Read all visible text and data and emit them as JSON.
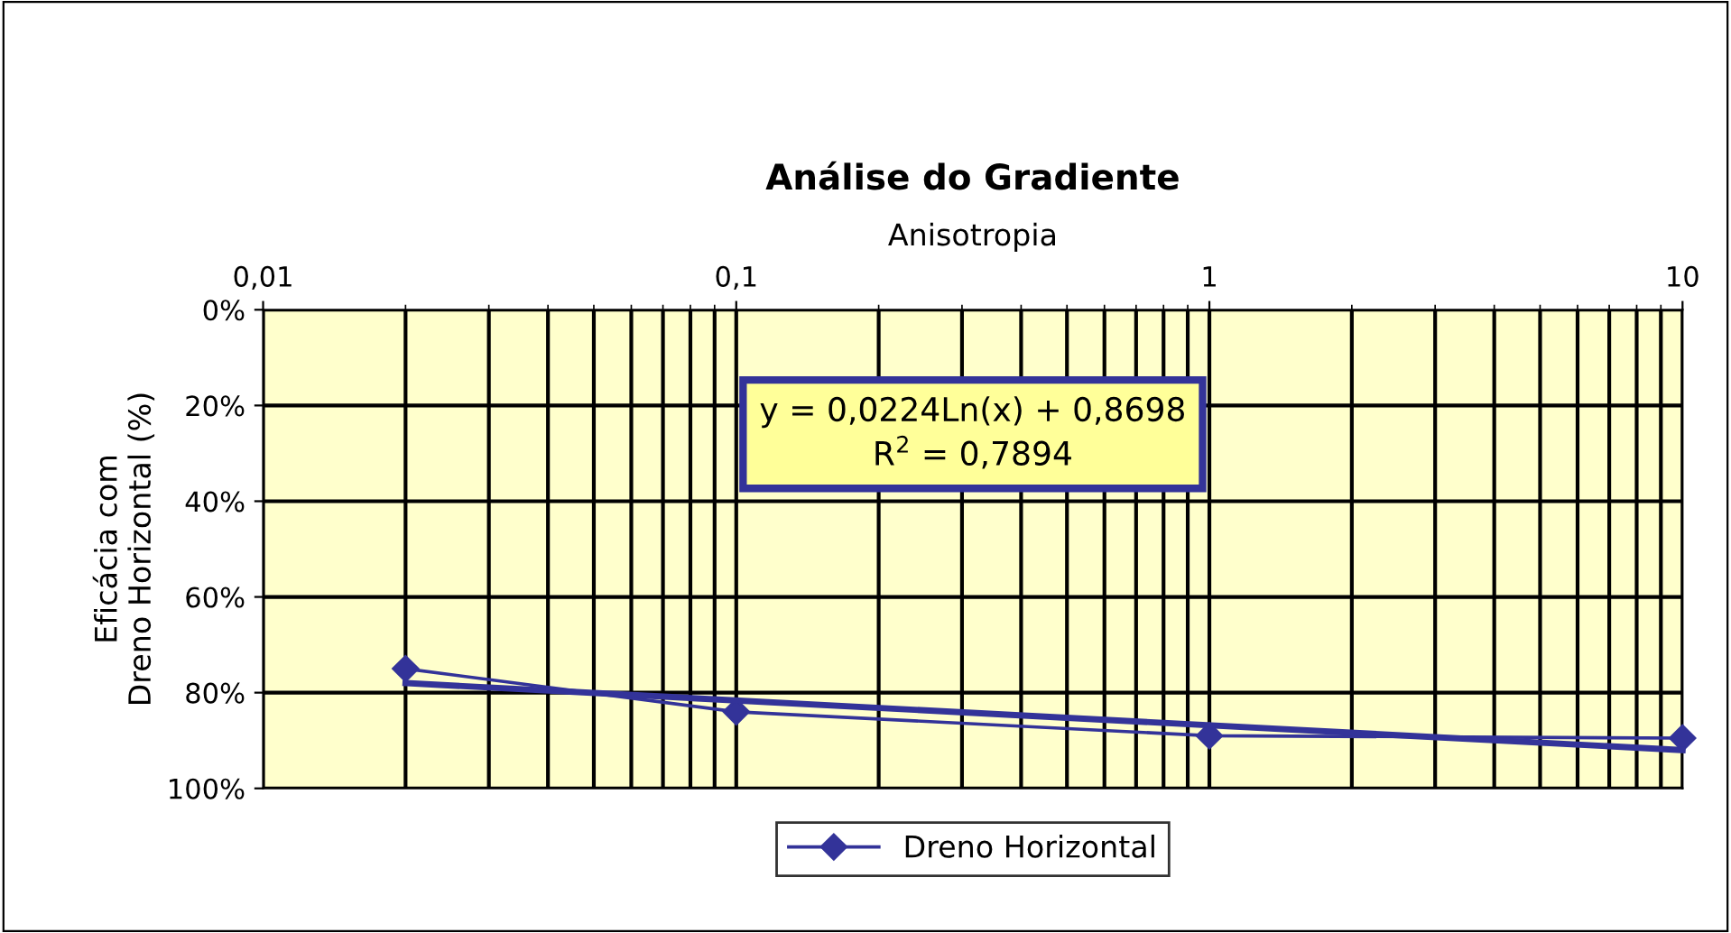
{
  "chart_data": {
    "type": "line",
    "title": "Análise do Gradiente",
    "xlabel": "Anisotropia",
    "ylabel": "Eficácia com\nDreno Horizontal (%)",
    "log": "x",
    "xlim": [
      0.01,
      10
    ],
    "xticks": [
      {
        "value": 0.01,
        "label": "0,01"
      },
      {
        "value": 0.1,
        "label": "0,1"
      },
      {
        "value": 1,
        "label": "1"
      },
      {
        "value": 10,
        "label": "10"
      }
    ],
    "ylim": [
      100,
      0
    ],
    "yticks": [
      {
        "value": 0,
        "label": "0%"
      },
      {
        "value": 20,
        "label": "20%"
      },
      {
        "value": 40,
        "label": "40%"
      },
      {
        "value": 60,
        "label": "60%"
      },
      {
        "value": 80,
        "label": "80%"
      },
      {
        "value": 100,
        "label": "100%"
      }
    ],
    "grid": true,
    "legend": "bottom",
    "marker": "diamond",
    "line_style": "solid",
    "series": [
      {
        "name": "Dreno Horizontal",
        "color": "#333399",
        "x": [
          0.02,
          0.1,
          1,
          10
        ],
        "values": [
          75,
          84,
          89,
          89.5
        ]
      },
      {
        "type": "line",
        "color": "#333399",
        "x": [
          0.02,
          10
        ],
        "values": [
          78,
          92
        ],
        "marker": "none"
      }
    ],
    "annotations": [
      "y = 0,0224Ln(x) + 0,8698\nR$^{2}$ = 0,7894"
    ]
  }
}
